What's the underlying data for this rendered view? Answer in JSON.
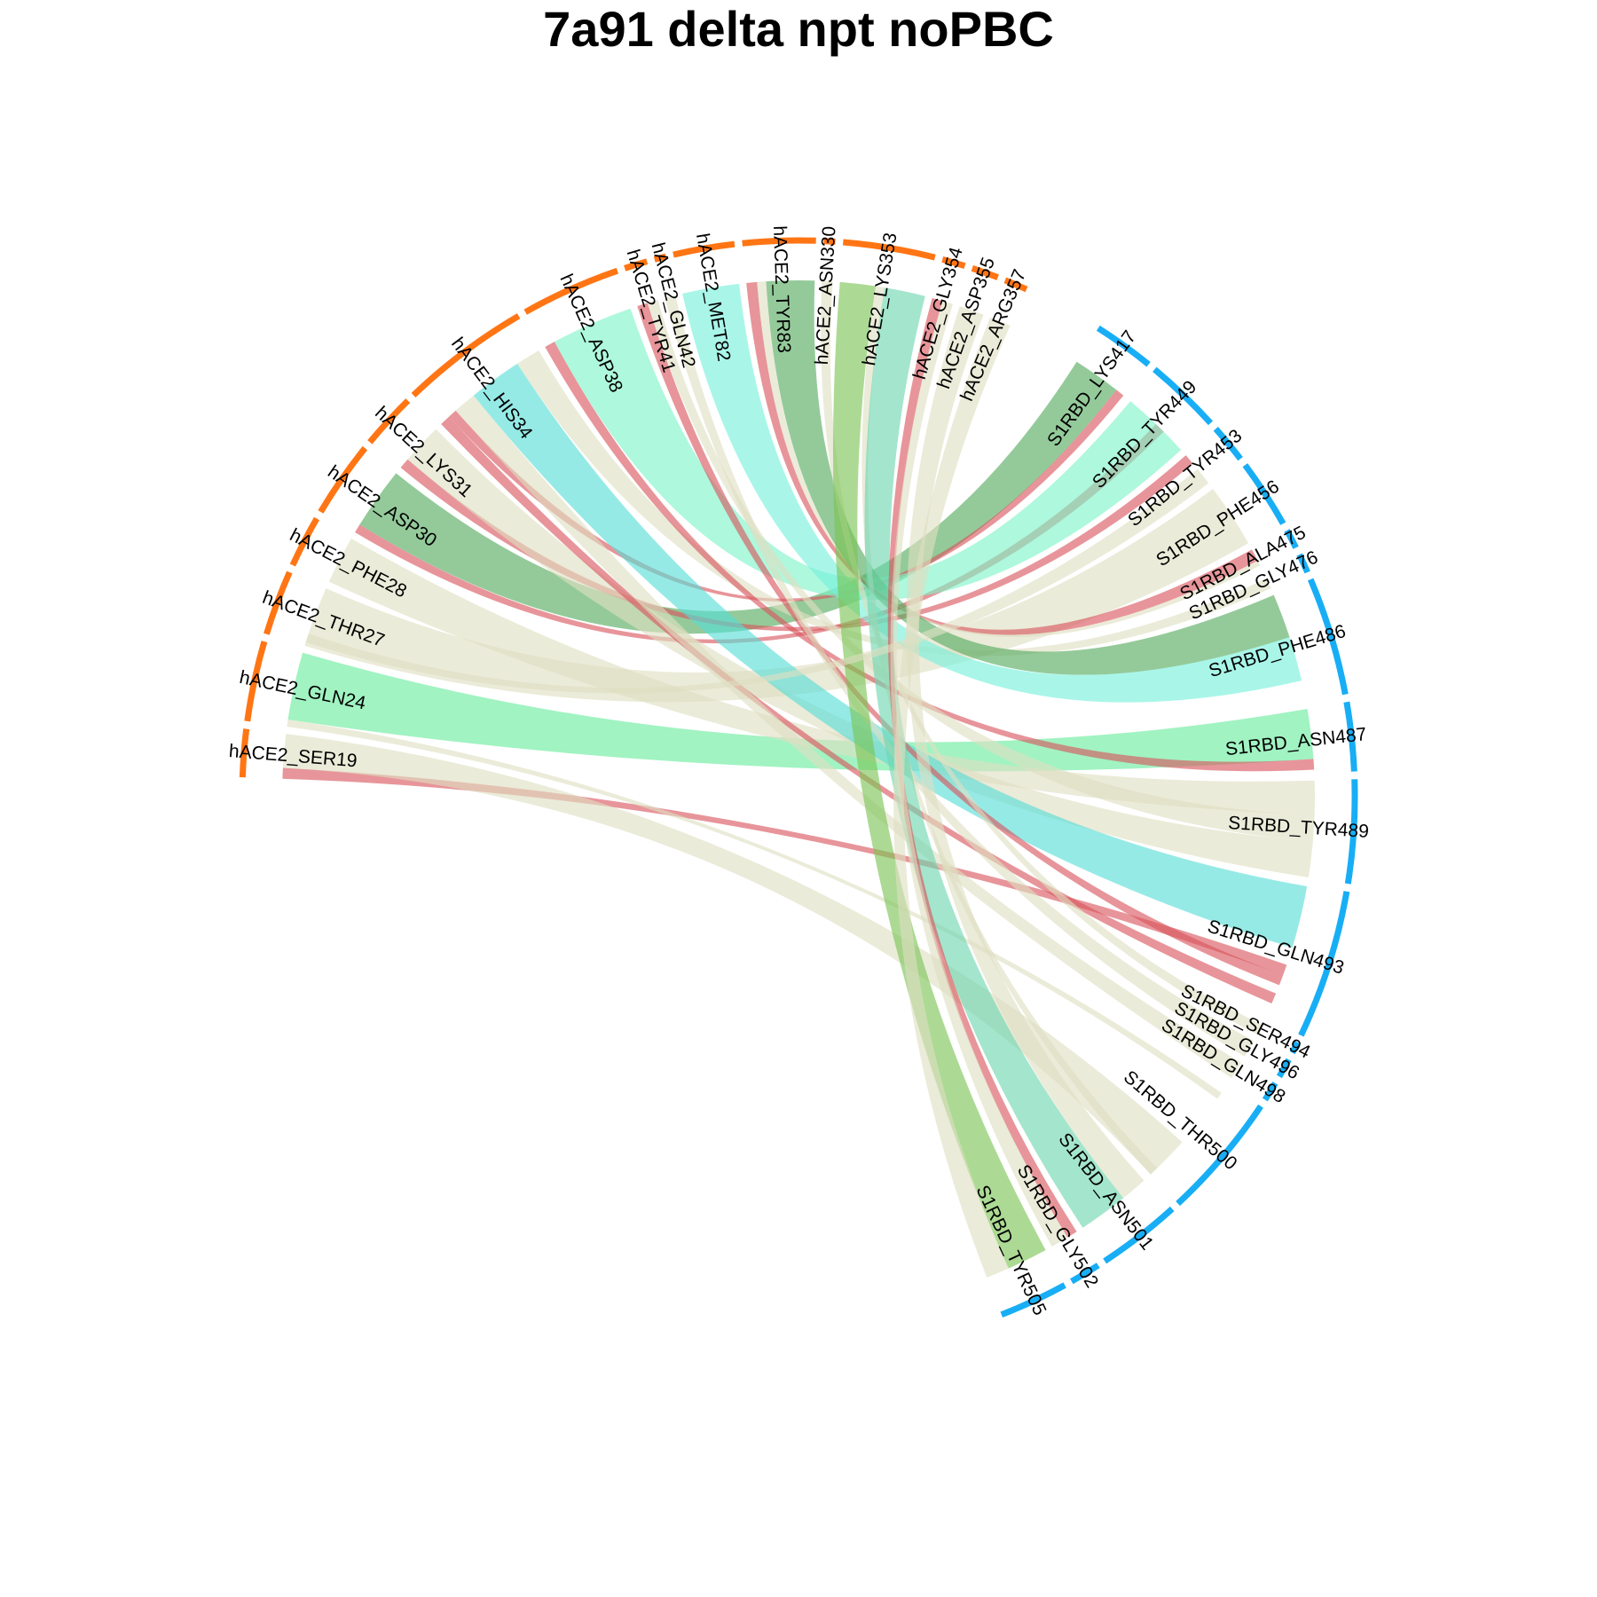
{
  "title": "7a91 delta npt noPBC",
  "chart_data": {
    "type": "chord",
    "groups": [
      {
        "name": "hACE2",
        "color": "#ff7514"
      },
      {
        "name": "S1RBD",
        "color": "#18aef5"
      }
    ],
    "colors": {
      "red": "#d9545c",
      "beige": "#dfdfc2",
      "turq": "#55ddd6",
      "mint": "#7df3c8",
      "green": "#53a95c",
      "lgreen": "#79c352",
      "aqua": "#74f0dc",
      "sea": "#6cd5ae",
      "lime": "#68ec9c"
    },
    "segments": [
      {
        "name": "hACE2_SER19",
        "group": "hACE2",
        "start": 2.0,
        "end": 7.0
      },
      {
        "name": "hACE2_GLN24",
        "group": "hACE2",
        "start": 7.8,
        "end": 16.2
      },
      {
        "name": "hACE2_THR27",
        "group": "hACE2",
        "start": 17.0,
        "end": 23.8
      },
      {
        "name": "hACE2_PHE28",
        "group": "hACE2",
        "start": 24.6,
        "end": 30.0
      },
      {
        "name": "hACE2_ASP30",
        "group": "hACE2",
        "start": 30.8,
        "end": 38.8
      },
      {
        "name": "hACE2_LYS31",
        "group": "hACE2",
        "start": 39.6,
        "end": 45.4
      },
      {
        "name": "hACE2_HIS34",
        "group": "hACE2",
        "start": 46.2,
        "end": 59.8
      },
      {
        "name": "hACE2_ASP38",
        "group": "hACE2",
        "start": 60.6,
        "end": 71.0
      },
      {
        "name": "hACE2_TYR41",
        "group": "hACE2",
        "start": 71.8,
        "end": 74.2
      },
      {
        "name": "hACE2_GLN42",
        "group": "hACE2",
        "start": 75.0,
        "end": 76.2
      },
      {
        "name": "hACE2_MET82",
        "group": "hACE2",
        "start": 77.0,
        "end": 83.4
      },
      {
        "name": "hACE2_TYR83",
        "group": "hACE2",
        "start": 84.2,
        "end": 91.8
      },
      {
        "name": "hACE2_ASN330",
        "group": "hACE2",
        "start": 92.6,
        "end": 93.8
      },
      {
        "name": "hACE2_LYS353",
        "group": "hACE2",
        "start": 94.6,
        "end": 104.2
      },
      {
        "name": "hACE2_GLY354",
        "group": "hACE2",
        "start": 105.0,
        "end": 107.4
      },
      {
        "name": "hACE2_ASP355",
        "group": "hACE2",
        "start": 108.2,
        "end": 111.0
      },
      {
        "name": "hACE2_ARG357",
        "group": "hACE2",
        "start": 111.8,
        "end": 114.2
      },
      {
        "name": "S1RBD_LYS417",
        "group": "S1RBD",
        "start": 122.6,
        "end": 129.0
      },
      {
        "name": "S1RBD_TYR449",
        "group": "S1RBD",
        "start": 129.8,
        "end": 137.8
      },
      {
        "name": "S1RBD_TYR453",
        "group": "S1RBD",
        "start": 138.6,
        "end": 142.6
      },
      {
        "name": "S1RBD_PHE456",
        "group": "S1RBD",
        "start": 143.4,
        "end": 150.6
      },
      {
        "name": "S1RBD_ALA475",
        "group": "S1RBD",
        "start": 151.4,
        "end": 153.4
      },
      {
        "name": "S1RBD_GLY476",
        "group": "S1RBD",
        "start": 154.2,
        "end": 156.2
      },
      {
        "name": "S1RBD_PHE486",
        "group": "S1RBD",
        "start": 157.0,
        "end": 169.4
      },
      {
        "name": "S1RBD_ASN487",
        "group": "S1RBD",
        "start": 170.2,
        "end": 177.4
      },
      {
        "name": "S1RBD_TYR489",
        "group": "S1RBD",
        "start": 178.2,
        "end": 189.0
      },
      {
        "name": "S1RBD_GLN493",
        "group": "S1RBD",
        "start": 189.8,
        "end": 205.4
      },
      {
        "name": "S1RBD_SER494",
        "group": "S1RBD",
        "start": 206.2,
        "end": 207.4
      },
      {
        "name": "S1RBD_GLY496",
        "group": "S1RBD",
        "start": 208.2,
        "end": 210.2
      },
      {
        "name": "S1RBD_GLN498",
        "group": "S1RBD",
        "start": 211.0,
        "end": 213.0
      },
      {
        "name": "S1RBD_THR500",
        "group": "S1RBD",
        "start": 213.8,
        "end": 227.0
      },
      {
        "name": "S1RBD_ASN501",
        "group": "S1RBD",
        "start": 227.8,
        "end": 236.6
      },
      {
        "name": "S1RBD_GLY502",
        "group": "S1RBD",
        "start": 237.4,
        "end": 240.6
      },
      {
        "name": "S1RBD_TYR505",
        "group": "S1RBD",
        "start": 241.4,
        "end": 248.6
      }
    ],
    "links": [
      {
        "a0": 2.0,
        "a1": 3.2,
        "b0": 199.0,
        "b1": 200.2,
        "color": "red"
      },
      {
        "a0": 3.2,
        "a1": 7.0,
        "b0": 222.0,
        "b1": 227.0,
        "color": "beige"
      },
      {
        "a0": 7.8,
        "a1": 8.6,
        "b0": 215.0,
        "b1": 215.8,
        "color": "beige"
      },
      {
        "a0": 8.6,
        "a1": 16.2,
        "b0": 170.2,
        "b1": 175.8,
        "color": "lime"
      },
      {
        "a0": 17.0,
        "a1": 23.8,
        "b0": 143.4,
        "b1": 150.6,
        "color": "beige"
      },
      {
        "a0": 24.6,
        "a1": 30.0,
        "b0": 178.2,
        "b1": 182.0,
        "color": "beige"
      },
      {
        "a0": 30.8,
        "a1": 31.8,
        "b0": 133.8,
        "b1": 135.0,
        "color": "red"
      },
      {
        "a0": 31.8,
        "a1": 38.8,
        "b0": 122.6,
        "b1": 128.0,
        "color": "green"
      },
      {
        "a0": 39.6,
        "a1": 40.8,
        "b0": 138.6,
        "b1": 139.8,
        "color": "red"
      },
      {
        "a0": 40.8,
        "a1": 45.4,
        "b0": 185.0,
        "b1": 189.0,
        "color": "beige"
      },
      {
        "a0": 46.2,
        "a1": 47.4,
        "b0": 202.4,
        "b1": 203.6,
        "color": "red"
      },
      {
        "a0": 47.4,
        "a1": 48.4,
        "b0": 128.0,
        "b1": 129.0,
        "color": "red"
      },
      {
        "a0": 48.4,
        "a1": 51.0,
        "b0": 211.0,
        "b1": 213.0,
        "color": "beige"
      },
      {
        "a0": 51.0,
        "a1": 57.0,
        "b0": 190.0,
        "b1": 197.0,
        "color": "turq"
      },
      {
        "a0": 57.0,
        "a1": 59.8,
        "b0": 155.0,
        "b1": 156.2,
        "color": "beige"
      },
      {
        "a0": 60.6,
        "a1": 61.8,
        "b0": 175.8,
        "b1": 177.0,
        "color": "red"
      },
      {
        "a0": 61.8,
        "a1": 71.0,
        "b0": 130.0,
        "b1": 137.8,
        "color": "mint"
      },
      {
        "a0": 71.8,
        "a1": 73.0,
        "b0": 200.2,
        "b1": 201.4,
        "color": "red"
      },
      {
        "a0": 73.0,
        "a1": 74.2,
        "b0": 182.0,
        "b1": 185.0,
        "color": "beige"
      },
      {
        "a0": 75.0,
        "a1": 76.2,
        "b0": 208.2,
        "b1": 210.2,
        "color": "beige"
      },
      {
        "a0": 77.0,
        "a1": 83.4,
        "b0": 162.0,
        "b1": 167.0,
        "color": "aqua"
      },
      {
        "a0": 84.2,
        "a1": 85.4,
        "b0": 151.4,
        "b1": 152.8,
        "color": "red"
      },
      {
        "a0": 85.4,
        "a1": 86.4,
        "b0": 152.8,
        "b1": 153.4,
        "color": "beige"
      },
      {
        "a0": 86.4,
        "a1": 91.8,
        "b0": 157.0,
        "b1": 162.0,
        "color": "green"
      },
      {
        "a0": 92.6,
        "a1": 93.8,
        "b0": 206.2,
        "b1": 207.4,
        "color": "beige"
      },
      {
        "a0": 94.6,
        "a1": 98.6,
        "b0": 241.4,
        "b1": 246.0,
        "color": "lgreen"
      },
      {
        "a0": 98.6,
        "a1": 99.6,
        "b0": 226.0,
        "b1": 227.0,
        "color": "beige"
      },
      {
        "a0": 99.6,
        "a1": 104.2,
        "b0": 231.0,
        "b1": 236.6,
        "color": "sea"
      },
      {
        "a0": 105.0,
        "a1": 106.2,
        "b0": 237.4,
        "b1": 238.6,
        "color": "red"
      },
      {
        "a0": 106.2,
        "a1": 107.4,
        "b0": 238.6,
        "b1": 240.6,
        "color": "beige"
      },
      {
        "a0": 108.2,
        "a1": 111.0,
        "b0": 228.0,
        "b1": 231.0,
        "color": "beige"
      },
      {
        "a0": 111.8,
        "a1": 114.2,
        "b0": 246.0,
        "b1": 248.6,
        "color": "beige"
      },
      {
        "a0": 17.4,
        "a1": 18.4,
        "b0": 140.6,
        "b1": 142.6,
        "color": "beige"
      }
    ]
  }
}
